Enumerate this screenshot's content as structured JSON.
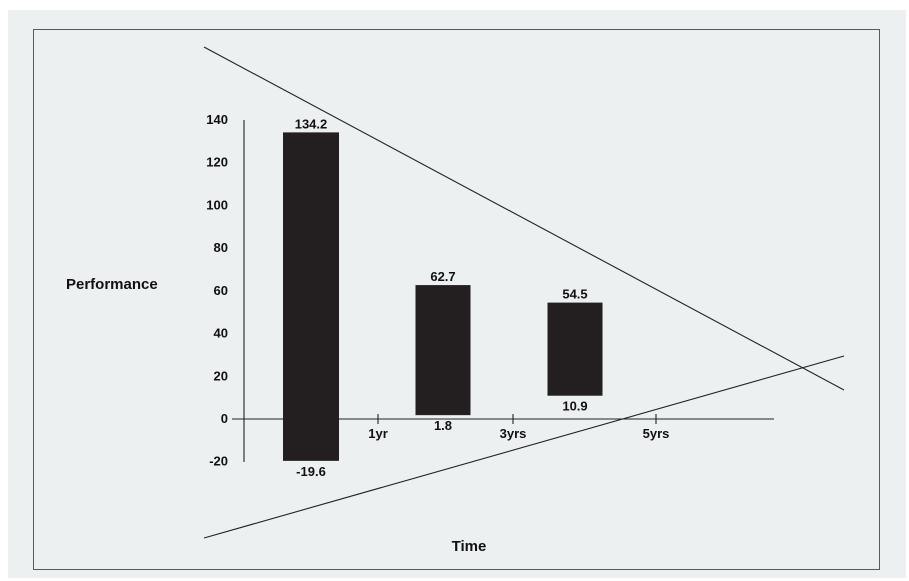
{
  "chart_data": {
    "type": "bar",
    "subtype": "floating-range",
    "title": "",
    "xlabel": "Time",
    "ylabel": "Performance",
    "ylim": [
      -20,
      140
    ],
    "yticks": [
      140,
      120,
      100,
      80,
      60,
      40,
      20,
      0,
      -20
    ],
    "xticks": [
      "1yr",
      "3yrs",
      "5yrs"
    ],
    "bars": [
      {
        "high": 134.2,
        "low": -19.6,
        "high_label": "134.2",
        "low_label": "-19.6"
      },
      {
        "high": 62.7,
        "low": 1.8,
        "high_label": "62.7",
        "low_label": "1.8"
      },
      {
        "high": 54.5,
        "low": 10.9,
        "high_label": "54.5",
        "low_label": "10.9"
      }
    ],
    "grid": false,
    "legend": "none",
    "colors": {
      "bar": "#231f20",
      "panel": "#edf0f1",
      "line": "#222222"
    }
  }
}
